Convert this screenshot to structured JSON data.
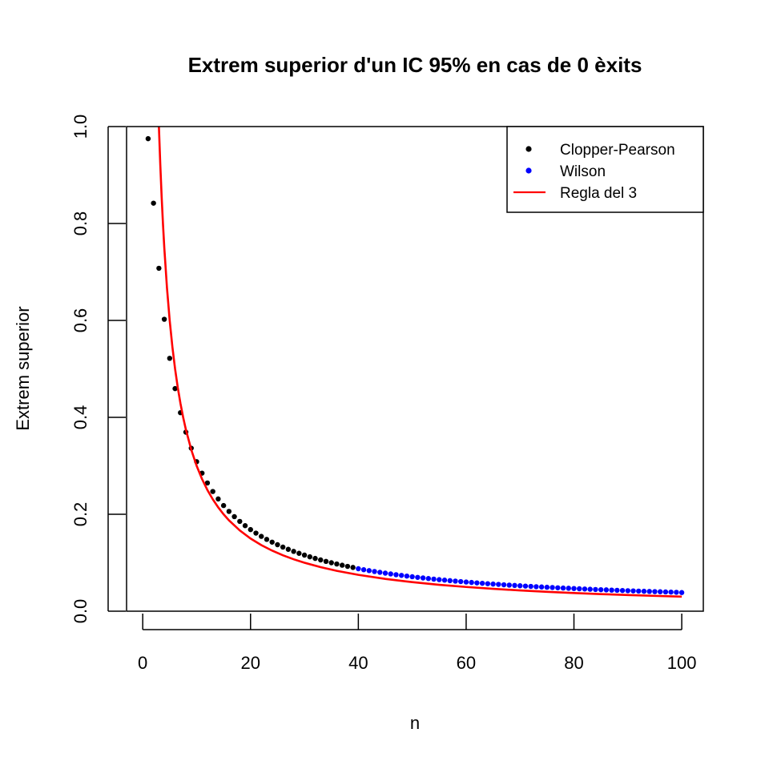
{
  "chart_data": {
    "type": "scatter",
    "title": "Extrem superior d'un IC 95% en cas de 0 èxits",
    "xlabel": "n",
    "ylabel": "Extrem superior",
    "xlim": [
      -3,
      104
    ],
    "ylim": [
      0,
      1.0
    ],
    "xticks": [
      0,
      20,
      40,
      60,
      80,
      100
    ],
    "yticks": [
      0.0,
      0.2,
      0.4,
      0.6,
      0.8,
      1.0
    ],
    "xtick_labels": [
      "0",
      "20",
      "40",
      "60",
      "80",
      "100"
    ],
    "ytick_labels": [
      "0.0",
      "0.2",
      "0.4",
      "0.6",
      "0.8",
      "1.0"
    ],
    "legend_position": "top-right",
    "series": [
      {
        "name": "Clopper-Pearson",
        "kind": "points",
        "color": "#000000",
        "x": [
          1,
          2,
          3,
          4,
          5,
          6,
          7,
          8,
          9,
          10,
          11,
          12,
          13,
          14,
          15,
          16,
          17,
          18,
          19,
          20,
          21,
          22,
          23,
          24,
          25,
          26,
          27,
          28,
          29,
          30,
          31,
          32,
          33,
          34,
          35,
          36,
          37,
          38,
          39
        ],
        "y": [
          0.975,
          0.8419,
          0.7076,
          0.6024,
          0.5218,
          0.4593,
          0.4096,
          0.3694,
          0.3363,
          0.3085,
          0.2849,
          0.2646,
          0.247,
          0.2316,
          0.218,
          0.2059,
          0.1951,
          0.1853,
          0.1765,
          0.1684,
          0.1611,
          0.1544,
          0.1482,
          0.1425,
          0.1372,
          0.1323,
          0.1277,
          0.1234,
          0.1194,
          0.1157,
          0.1122,
          0.1089,
          0.1058,
          0.1028,
          0.1,
          0.0974,
          0.0949,
          0.0925,
          0.0903
        ]
      },
      {
        "name": "Wilson",
        "kind": "points",
        "color": "#0000ff",
        "x": [
          40,
          41,
          42,
          43,
          44,
          45,
          46,
          47,
          48,
          49,
          50,
          51,
          52,
          53,
          54,
          55,
          56,
          57,
          58,
          59,
          60,
          61,
          62,
          63,
          64,
          65,
          66,
          67,
          68,
          69,
          70,
          71,
          72,
          73,
          74,
          75,
          76,
          77,
          78,
          79,
          80,
          81,
          82,
          83,
          84,
          85,
          86,
          87,
          88,
          89,
          90,
          91,
          92,
          93,
          94,
          95,
          96,
          97,
          98,
          99,
          100
        ],
        "y": [
          0.0876,
          0.0856,
          0.0837,
          0.0819,
          0.0802,
          0.0785,
          0.0769,
          0.0753,
          0.0739,
          0.0725,
          0.0711,
          0.0698,
          0.0686,
          0.0674,
          0.0662,
          0.0651,
          0.0641,
          0.063,
          0.0621,
          0.0611,
          0.0602,
          0.0593,
          0.0584,
          0.0576,
          0.0568,
          0.056,
          0.0553,
          0.0545,
          0.0538,
          0.0532,
          0.0525,
          0.0518,
          0.0512,
          0.0506,
          0.05,
          0.0494,
          0.0489,
          0.0483,
          0.0478,
          0.0473,
          0.0468,
          0.0463,
          0.0458,
          0.0453,
          0.0448,
          0.0444,
          0.044,
          0.0435,
          0.0431,
          0.0427,
          0.0423,
          0.0419,
          0.0415,
          0.0411,
          0.0408,
          0.0404,
          0.0401,
          0.0397,
          0.0394,
          0.039,
          0.0385
        ]
      },
      {
        "name": "Regla del 3",
        "kind": "line",
        "color": "#ff0000",
        "x": [
          3,
          3.25,
          3.5,
          3.75,
          4,
          4.5,
          5,
          5.5,
          6,
          6.5,
          7,
          7.5,
          8,
          9,
          10,
          11,
          12,
          13,
          14,
          15,
          16,
          18,
          20,
          22,
          24,
          26,
          28,
          30,
          33,
          36,
          40,
          45,
          50,
          55,
          60,
          65,
          70,
          75,
          80,
          85,
          90,
          95,
          100
        ],
        "y": [
          1,
          0.9231,
          0.8571,
          0.8,
          0.75,
          0.6667,
          0.6,
          0.5455,
          0.5,
          0.4615,
          0.4286,
          0.4,
          0.375,
          0.3333,
          0.3,
          0.2727,
          0.25,
          0.2308,
          0.2143,
          0.2,
          0.1875,
          0.1667,
          0.15,
          0.1364,
          0.125,
          0.1154,
          0.1071,
          0.1,
          0.0909,
          0.0833,
          0.075,
          0.0667,
          0.06,
          0.0545,
          0.05,
          0.0462,
          0.0429,
          0.04,
          0.0375,
          0.0353,
          0.0333,
          0.0316,
          0.03
        ]
      }
    ]
  }
}
